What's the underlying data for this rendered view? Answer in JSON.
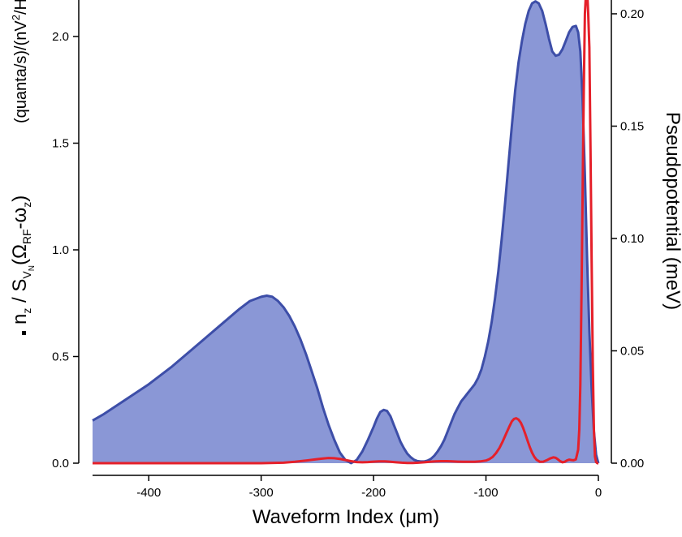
{
  "chart_data": {
    "type": "area",
    "xlabel": "Waveform Index (μm)",
    "ylabel_left": {
      "symbol": "n",
      "symbol_sub": "z",
      "middle": " / S",
      "s_sub": "V",
      "s_subsub": "N",
      "args": "(Ω",
      "args_sub1": "RF",
      "args_mid": "-ω",
      "args_sub2": "z",
      "args_close": ")",
      "units": "(quanta/s)/(nV",
      "units_sup": "2",
      "units_close": "/Hz)"
    },
    "ylabel_right": "Pseudopotential (meV)",
    "xlim": [
      -450,
      0
    ],
    "ylim_left": [
      0,
      2.2
    ],
    "ylim_right": [
      0,
      0.2095
    ],
    "x_ticks": [
      -400,
      -300,
      -200,
      -100,
      0
    ],
    "x_tick_labels": [
      "-400",
      "-300",
      "-200",
      "-100",
      "0"
    ],
    "y_left_ticks": [
      0.0,
      0.5,
      1.0,
      1.5,
      2.0
    ],
    "y_left_tick_labels": [
      "0.0",
      "0.5",
      "1.0",
      "1.5",
      "2.0"
    ],
    "y_right_ticks": [
      0.0,
      0.05,
      0.1,
      0.15,
      0.2
    ],
    "y_right_tick_labels": [
      "0.00",
      "0.05",
      "0.10",
      "0.15",
      "0.20"
    ],
    "grid": false,
    "series": [
      {
        "axis": "left",
        "style": "area",
        "color": "#3d4ea8",
        "fill": "#8a97d6",
        "x": [
          -450,
          -440,
          -420,
          -400,
          -380,
          -360,
          -340,
          -320,
          -310,
          -300,
          -295,
          -290,
          -285,
          -280,
          -275,
          -270,
          -265,
          -260,
          -255,
          -250,
          -245,
          -240,
          -235,
          -230,
          -225,
          -220,
          -215,
          -210,
          -205,
          -200,
          -197,
          -194,
          -191,
          -188,
          -185,
          -182,
          -179,
          -176,
          -173,
          -170,
          -167,
          -164,
          -161,
          -158,
          -155,
          -152,
          -149,
          -146,
          -143,
          -140,
          -137,
          -134,
          -131,
          -128,
          -125,
          -122,
          -119,
          -116,
          -113,
          -110,
          -107,
          -104,
          -101,
          -98,
          -95,
          -92,
          -89,
          -86,
          -83,
          -80,
          -77,
          -74,
          -71,
          -68,
          -65,
          -62,
          -59,
          -56,
          -53,
          -50,
          -47,
          -44,
          -41,
          -38,
          -35,
          -32,
          -29,
          -26,
          -23,
          -20,
          -18,
          -16,
          -14,
          -12,
          -10,
          -8,
          -6,
          -4,
          -2,
          0
        ],
        "y": [
          0.2,
          0.23,
          0.3,
          0.37,
          0.45,
          0.54,
          0.63,
          0.72,
          0.76,
          0.78,
          0.785,
          0.78,
          0.76,
          0.73,
          0.69,
          0.64,
          0.58,
          0.51,
          0.43,
          0.35,
          0.26,
          0.18,
          0.11,
          0.05,
          0.015,
          0.0,
          0.015,
          0.055,
          0.11,
          0.17,
          0.21,
          0.24,
          0.25,
          0.245,
          0.22,
          0.18,
          0.14,
          0.1,
          0.07,
          0.045,
          0.028,
          0.016,
          0.01,
          0.008,
          0.008,
          0.012,
          0.02,
          0.035,
          0.055,
          0.08,
          0.11,
          0.15,
          0.19,
          0.23,
          0.26,
          0.29,
          0.31,
          0.33,
          0.35,
          0.37,
          0.4,
          0.44,
          0.5,
          0.57,
          0.66,
          0.77,
          0.9,
          1.05,
          1.22,
          1.4,
          1.58,
          1.75,
          1.88,
          1.98,
          2.06,
          2.12,
          2.155,
          2.165,
          2.155,
          2.12,
          2.06,
          1.99,
          1.93,
          1.91,
          1.915,
          1.94,
          1.98,
          2.02,
          2.045,
          2.05,
          2.02,
          1.93,
          1.7,
          1.35,
          0.95,
          0.62,
          0.35,
          0.15,
          0.04,
          0.0
        ]
      },
      {
        "axis": "right",
        "style": "line",
        "color": "#e5202a",
        "x": [
          -450,
          -400,
          -350,
          -300,
          -280,
          -270,
          -260,
          -250,
          -245,
          -240,
          -235,
          -230,
          -225,
          -220,
          -215,
          -210,
          -205,
          -200,
          -195,
          -190,
          -185,
          -180,
          -175,
          -170,
          -165,
          -160,
          -155,
          -150,
          -145,
          -140,
          -135,
          -130,
          -125,
          -120,
          -115,
          -110,
          -105,
          -100,
          -97,
          -94,
          -91,
          -88,
          -85,
          -82,
          -79,
          -77,
          -75,
          -73,
          -71,
          -69,
          -67,
          -65,
          -63,
          -61,
          -59,
          -57,
          -55,
          -52,
          -49,
          -46,
          -43,
          -40,
          -38,
          -36,
          -34,
          -32,
          -30,
          -28,
          -26,
          -24,
          -22,
          -20,
          -18,
          -17,
          -16,
          -15,
          -14,
          -13,
          -12,
          -11,
          -10,
          -9,
          -8,
          -7,
          -6,
          -5,
          -4,
          -3,
          -2,
          -1,
          0
        ],
        "y": [
          0.0,
          0.0,
          0.0,
          0.0,
          0.0002,
          0.0006,
          0.0012,
          0.0018,
          0.0021,
          0.0023,
          0.0022,
          0.0019,
          0.0014,
          0.0009,
          0.0005,
          0.0004,
          0.0005,
          0.0007,
          0.0008,
          0.0008,
          0.0006,
          0.0004,
          0.0002,
          0.0001,
          0.0001,
          0.0002,
          0.0004,
          0.0006,
          0.0008,
          0.0009,
          0.0009,
          0.0008,
          0.0007,
          0.0006,
          0.0006,
          0.0006,
          0.0008,
          0.0012,
          0.0018,
          0.0028,
          0.0045,
          0.0068,
          0.0098,
          0.0132,
          0.0165,
          0.0186,
          0.0197,
          0.02,
          0.0194,
          0.018,
          0.0158,
          0.013,
          0.01,
          0.0072,
          0.0047,
          0.0028,
          0.0015,
          0.0006,
          0.0007,
          0.0013,
          0.0021,
          0.0026,
          0.0024,
          0.0017,
          0.0009,
          0.0004,
          0.0006,
          0.0012,
          0.0016,
          0.0014,
          0.0013,
          0.0017,
          0.006,
          0.015,
          0.035,
          0.075,
          0.12,
          0.165,
          0.2,
          0.2095,
          0.21,
          0.2,
          0.185,
          0.14,
          0.09,
          0.045,
          0.015,
          0.003,
          0.0005,
          0.0,
          0.0
        ]
      }
    ]
  }
}
